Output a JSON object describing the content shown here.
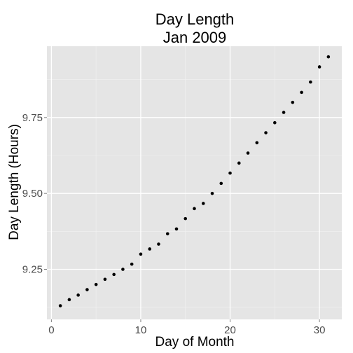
{
  "chart_data": {
    "type": "scatter",
    "title_lines": [
      "Day Length",
      "Jan 2009"
    ],
    "xlabel": "Day of Month",
    "ylabel": "Day Length (Hours)",
    "xlim": [
      -0.5,
      32.5
    ],
    "ylim": [
      9.085,
      9.985
    ],
    "xticks": [
      0,
      10,
      20,
      30
    ],
    "xtick_labels": [
      "0",
      "10",
      "20",
      "30"
    ],
    "yticks": [
      9.25,
      9.5,
      9.75
    ],
    "ytick_labels": [
      "9.25",
      "9.50",
      "9.75"
    ],
    "grid": true,
    "series": [
      {
        "name": "Day Length",
        "x": [
          1,
          2,
          3,
          4,
          5,
          6,
          7,
          8,
          9,
          10,
          11,
          12,
          13,
          14,
          15,
          16,
          17,
          18,
          19,
          20,
          21,
          22,
          23,
          24,
          25,
          26,
          27,
          28,
          29,
          30,
          31
        ],
        "y": [
          9.13,
          9.15,
          9.165,
          9.183,
          9.2,
          9.217,
          9.233,
          9.25,
          9.267,
          9.3,
          9.317,
          9.333,
          9.367,
          9.383,
          9.417,
          9.45,
          9.467,
          9.5,
          9.533,
          9.567,
          9.6,
          9.633,
          9.667,
          9.7,
          9.733,
          9.767,
          9.8,
          9.833,
          9.867,
          9.917,
          9.95
        ]
      }
    ]
  }
}
